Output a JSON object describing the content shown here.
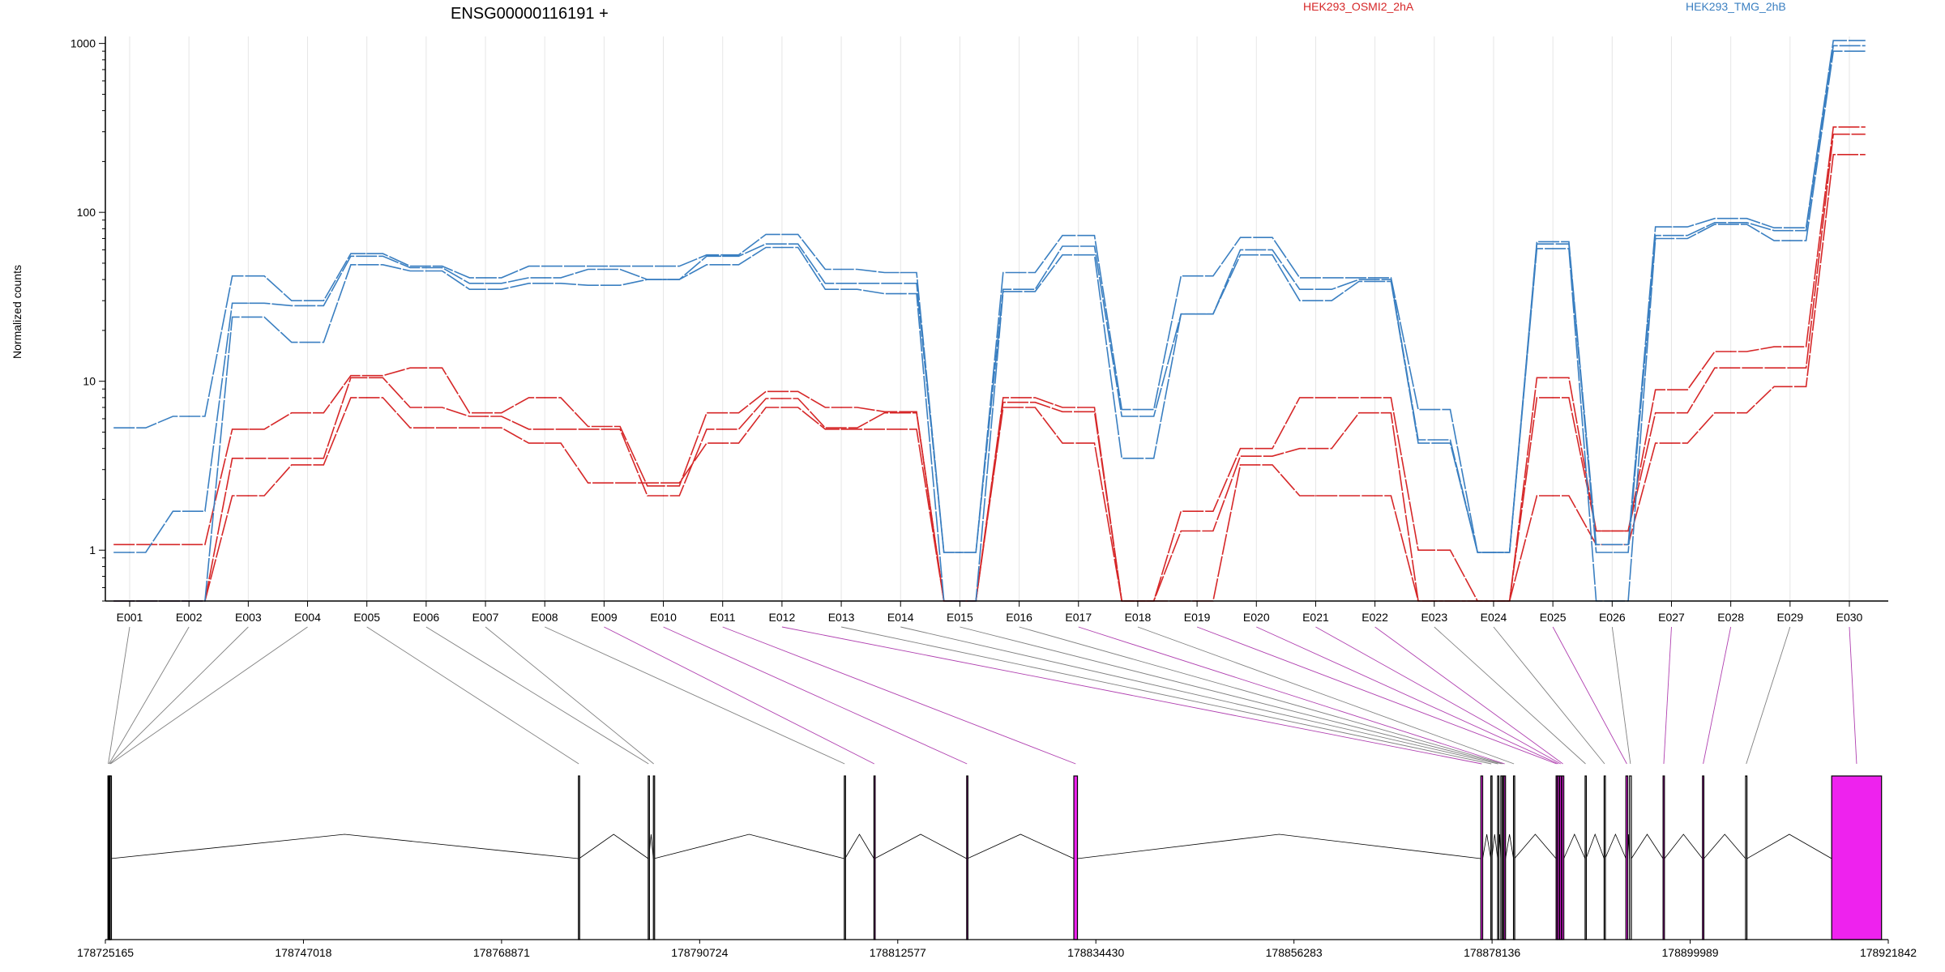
{
  "chart_data": {
    "type": "line",
    "title": "ENSG00000116191 +",
    "ylabel": "Normalized counts",
    "yscale": "log",
    "ylim": [
      0.5,
      1100
    ],
    "yticks": [
      "1",
      "10",
      "100",
      "1000"
    ],
    "grid": "vertical",
    "legend_position": "top",
    "categories": [
      "E001",
      "E002",
      "E003",
      "E004",
      "E005",
      "E006",
      "E007",
      "E008",
      "E009",
      "E010",
      "E011",
      "E012",
      "E013",
      "E014",
      "E015",
      "E016",
      "E017",
      "E018",
      "E019",
      "E020",
      "E021",
      "E022",
      "E023",
      "E024",
      "E025",
      "E026",
      "E027",
      "E028",
      "E029",
      "E030"
    ],
    "groups": [
      {
        "name": "HEK293_OSMI2_2hA",
        "color": "#d62728"
      },
      {
        "name": "HEK293_TMG_2hB",
        "color": "#3a7fc1"
      }
    ],
    "series": [
      {
        "group": 0,
        "values": [
          1.08,
          1.08,
          5.2,
          6.5,
          10.8,
          12,
          6.5,
          8,
          5.4,
          2.4,
          6.5,
          8.7,
          7,
          6.6,
          0.5,
          8,
          7,
          0.5,
          1.7,
          4,
          8,
          8,
          1,
          0.5,
          10.5,
          1.3,
          8.9,
          15,
          16,
          320
        ]
      },
      {
        "group": 0,
        "values": [
          0.5,
          0.5,
          3.5,
          3.5,
          10.5,
          7,
          6.2,
          5.2,
          5.2,
          2.1,
          5.2,
          7.9,
          5.3,
          6.5,
          0.5,
          7.5,
          6.6,
          0.5,
          1.3,
          3.6,
          4,
          6.5,
          0.5,
          0.5,
          8,
          1.3,
          6.5,
          12,
          12,
          290
        ]
      },
      {
        "group": 0,
        "values": [
          0.5,
          0.5,
          2.1,
          3.2,
          8,
          5.3,
          5.3,
          4.3,
          2.5,
          2.5,
          4.3,
          7,
          5.2,
          5.2,
          0.5,
          7,
          4.3,
          0.5,
          0.5,
          3.2,
          2.1,
          2.1,
          0.5,
          0.5,
          2.1,
          1.08,
          4.3,
          6.5,
          9.3,
          220
        ]
      },
      {
        "group": 1,
        "values": [
          5.3,
          6.2,
          42,
          30,
          57,
          48,
          41,
          48,
          48,
          48,
          56,
          74,
          46,
          44,
          0.97,
          44,
          73,
          6.8,
          42,
          71,
          41,
          41,
          6.8,
          0.97,
          67,
          1.08,
          82,
          92,
          81,
          1040
        ]
      },
      {
        "group": 1,
        "values": [
          0.97,
          1.7,
          29,
          28,
          55,
          47,
          38,
          41,
          46,
          40,
          55,
          65,
          38,
          38,
          0.97,
          35,
          63,
          6.2,
          25,
          60,
          35,
          40,
          4.5,
          0.97,
          65,
          0.97,
          73,
          87,
          78,
          970
        ]
      },
      {
        "group": 1,
        "values": [
          0.5,
          0.5,
          24,
          17,
          49,
          45,
          35,
          38,
          37,
          40,
          49,
          62,
          35,
          33,
          0.5,
          34,
          56,
          3.5,
          25,
          56,
          30,
          39,
          4.3,
          0.97,
          61,
          0.5,
          70,
          85,
          68,
          900
        ]
      }
    ],
    "gene_axis": {
      "ticks": [
        "178725165",
        "178747018",
        "178768871",
        "178790724",
        "178812577",
        "178834430",
        "178856283",
        "178878136",
        "178899989",
        "178921842"
      ],
      "range": [
        178725165,
        178921842
      ],
      "exons": [
        {
          "id": "E001",
          "start": 178725450,
          "end": 178725520,
          "highlight": false
        },
        {
          "id": "E002",
          "start": 178725540,
          "end": 178725600,
          "highlight": false
        },
        {
          "id": "E003",
          "start": 178725620,
          "end": 178725680,
          "highlight": false
        },
        {
          "id": "E004",
          "start": 178725700,
          "end": 178725760,
          "highlight": false
        },
        {
          "id": "E005",
          "start": 178777350,
          "end": 178777420,
          "highlight": false
        },
        {
          "id": "E006",
          "start": 178785050,
          "end": 178785120,
          "highlight": false
        },
        {
          "id": "E007",
          "start": 178785620,
          "end": 178785690,
          "highlight": false
        },
        {
          "id": "E008",
          "start": 178806680,
          "end": 178806750,
          "highlight": false
        },
        {
          "id": "E009",
          "start": 178809950,
          "end": 178810020,
          "highlight": true
        },
        {
          "id": "E010",
          "start": 178820180,
          "end": 178820250,
          "highlight": true
        },
        {
          "id": "E011",
          "start": 178832000,
          "end": 178832400,
          "highlight": true
        },
        {
          "id": "E012",
          "start": 178876900,
          "end": 178877100,
          "highlight": true
        },
        {
          "id": "E013",
          "start": 178878000,
          "end": 178878100,
          "highlight": false
        },
        {
          "id": "E014",
          "start": 178878750,
          "end": 178878850,
          "highlight": false
        },
        {
          "id": "E015",
          "start": 178879100,
          "end": 178879250,
          "highlight": false
        },
        {
          "id": "E016",
          "start": 178879300,
          "end": 178879420,
          "highlight": false
        },
        {
          "id": "E017",
          "start": 178879450,
          "end": 178879620,
          "highlight": true
        },
        {
          "id": "E018",
          "start": 178880500,
          "end": 178880600,
          "highlight": false
        },
        {
          "id": "E019",
          "start": 178885200,
          "end": 178885300,
          "highlight": true
        },
        {
          "id": "E020",
          "start": 178885350,
          "end": 178885550,
          "highlight": true
        },
        {
          "id": "E021",
          "start": 178885600,
          "end": 178885800,
          "highlight": true
        },
        {
          "id": "E022",
          "start": 178885850,
          "end": 178886050,
          "highlight": true
        },
        {
          "id": "E023",
          "start": 178888400,
          "end": 178888500,
          "highlight": false
        },
        {
          "id": "E024",
          "start": 178890500,
          "end": 178890600,
          "highlight": false
        },
        {
          "id": "E025",
          "start": 178892900,
          "end": 178893100,
          "highlight": true
        },
        {
          "id": "E026",
          "start": 178893300,
          "end": 178893500,
          "highlight": false
        },
        {
          "id": "E027",
          "start": 178897000,
          "end": 178897150,
          "highlight": true
        },
        {
          "id": "E028",
          "start": 178901350,
          "end": 178901500,
          "highlight": true
        },
        {
          "id": "E029",
          "start": 178906100,
          "end": 178906250,
          "highlight": false
        },
        {
          "id": "E030",
          "start": 178915600,
          "end": 178921100,
          "highlight": true
        }
      ]
    }
  }
}
